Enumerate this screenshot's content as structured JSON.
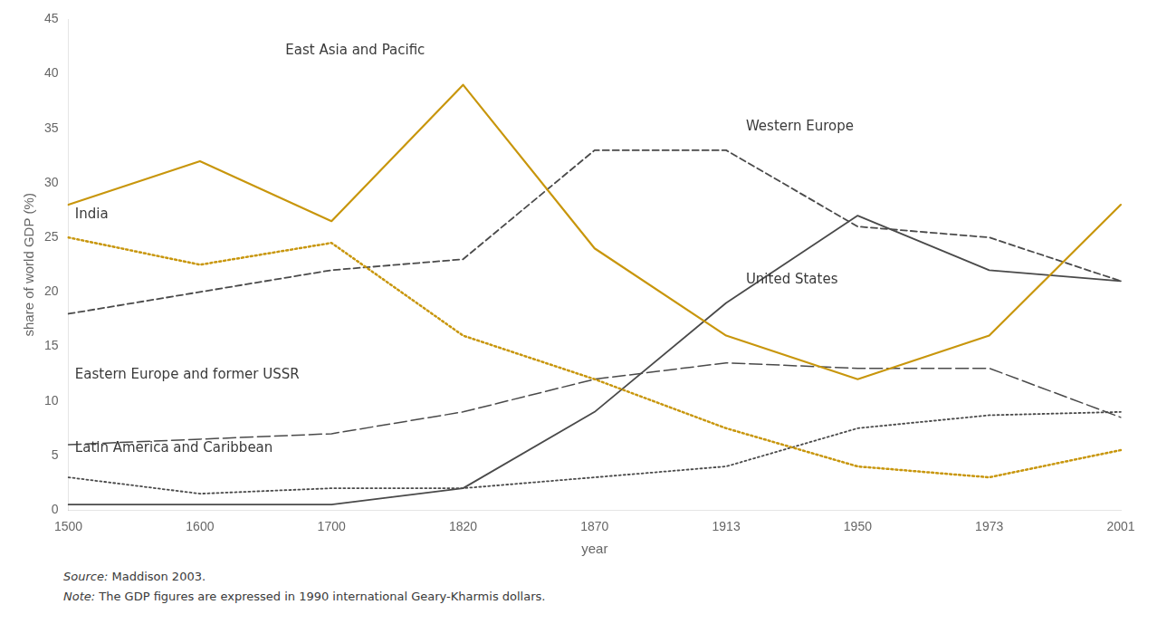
{
  "chart_data": {
    "type": "line",
    "categories": [
      "1500",
      "1600",
      "1700",
      "1820",
      "1870",
      "1913",
      "1950",
      "1973",
      "2001"
    ],
    "series": [
      {
        "name": "East Asia and Pacific",
        "color": "#c8960c",
        "line_style": "solid",
        "values": [
          28,
          32,
          26.5,
          39,
          24,
          16,
          12,
          16,
          28
        ]
      },
      {
        "name": "India",
        "color": "#c8960c",
        "line_style": "dotted",
        "values": [
          25,
          22.5,
          24.5,
          16,
          12,
          7.5,
          4,
          3,
          5.5
        ]
      },
      {
        "name": "Western Europe",
        "color": "#4a4a4a",
        "line_style": "dashed",
        "values": [
          18,
          20,
          22,
          23,
          33,
          33,
          26,
          25,
          21
        ]
      },
      {
        "name": "United States",
        "color": "#4a4a4a",
        "line_style": "solid",
        "values": [
          0.5,
          0.5,
          0.5,
          2,
          9,
          19,
          27,
          22,
          21
        ]
      },
      {
        "name": "Eastern Europe and former USSR",
        "color": "#4a4a4a",
        "line_style": "long_dashed",
        "values": [
          6,
          6.5,
          7,
          9,
          12,
          13.5,
          13,
          13,
          8.5
        ]
      },
      {
        "name": "Latin America and Caribbean",
        "color": "#4a4a4a",
        "line_style": "dotted",
        "values": [
          3,
          1.5,
          2,
          2,
          3,
          4,
          7.5,
          8.7,
          9
        ]
      }
    ],
    "xlabel": "year",
    "ylabel": "share of world GDP (%)",
    "ylim": [
      0,
      45
    ],
    "yticks": [
      0,
      5,
      10,
      15,
      20,
      25,
      30,
      35,
      40,
      45
    ],
    "grid": false,
    "source": [
      "Source:",
      "Maddison 2003."
    ],
    "note": [
      "Note:",
      "The GDP figures are expressed in 1990 international Geary-Kharmis dollars."
    ]
  }
}
